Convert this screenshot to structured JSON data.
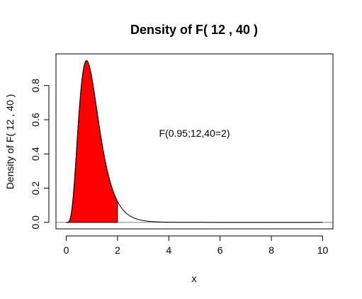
{
  "chart_data": {
    "type": "area",
    "title": "Density of F( 12 , 40 )",
    "xlabel": "x",
    "ylabel": "Density of F( 12 , 40 )",
    "xlim": [
      -0.4,
      10.4
    ],
    "ylim": [
      -0.038,
      0.985
    ],
    "x_ticks": [
      0,
      2,
      4,
      6,
      8,
      10
    ],
    "x_tick_labels": [
      "0",
      "2",
      "4",
      "6",
      "8",
      "10"
    ],
    "y_ticks": [
      0.0,
      0.2,
      0.4,
      0.6,
      0.8
    ],
    "y_tick_labels": [
      "0.0",
      "0.2",
      "0.4",
      "0.6",
      "0.8"
    ],
    "distribution": {
      "name": "F",
      "df1": 12,
      "df2": 40
    },
    "curve_x_range": [
      0,
      10
    ],
    "shaded_region": {
      "from": 0,
      "to": 2,
      "color": "#ff0000"
    },
    "baseline_y": 0,
    "annotation": "F(0.95;12,40=2)",
    "annotation_position": {
      "x": 5,
      "y": 0.5
    },
    "grid": false,
    "legend": "none"
  }
}
